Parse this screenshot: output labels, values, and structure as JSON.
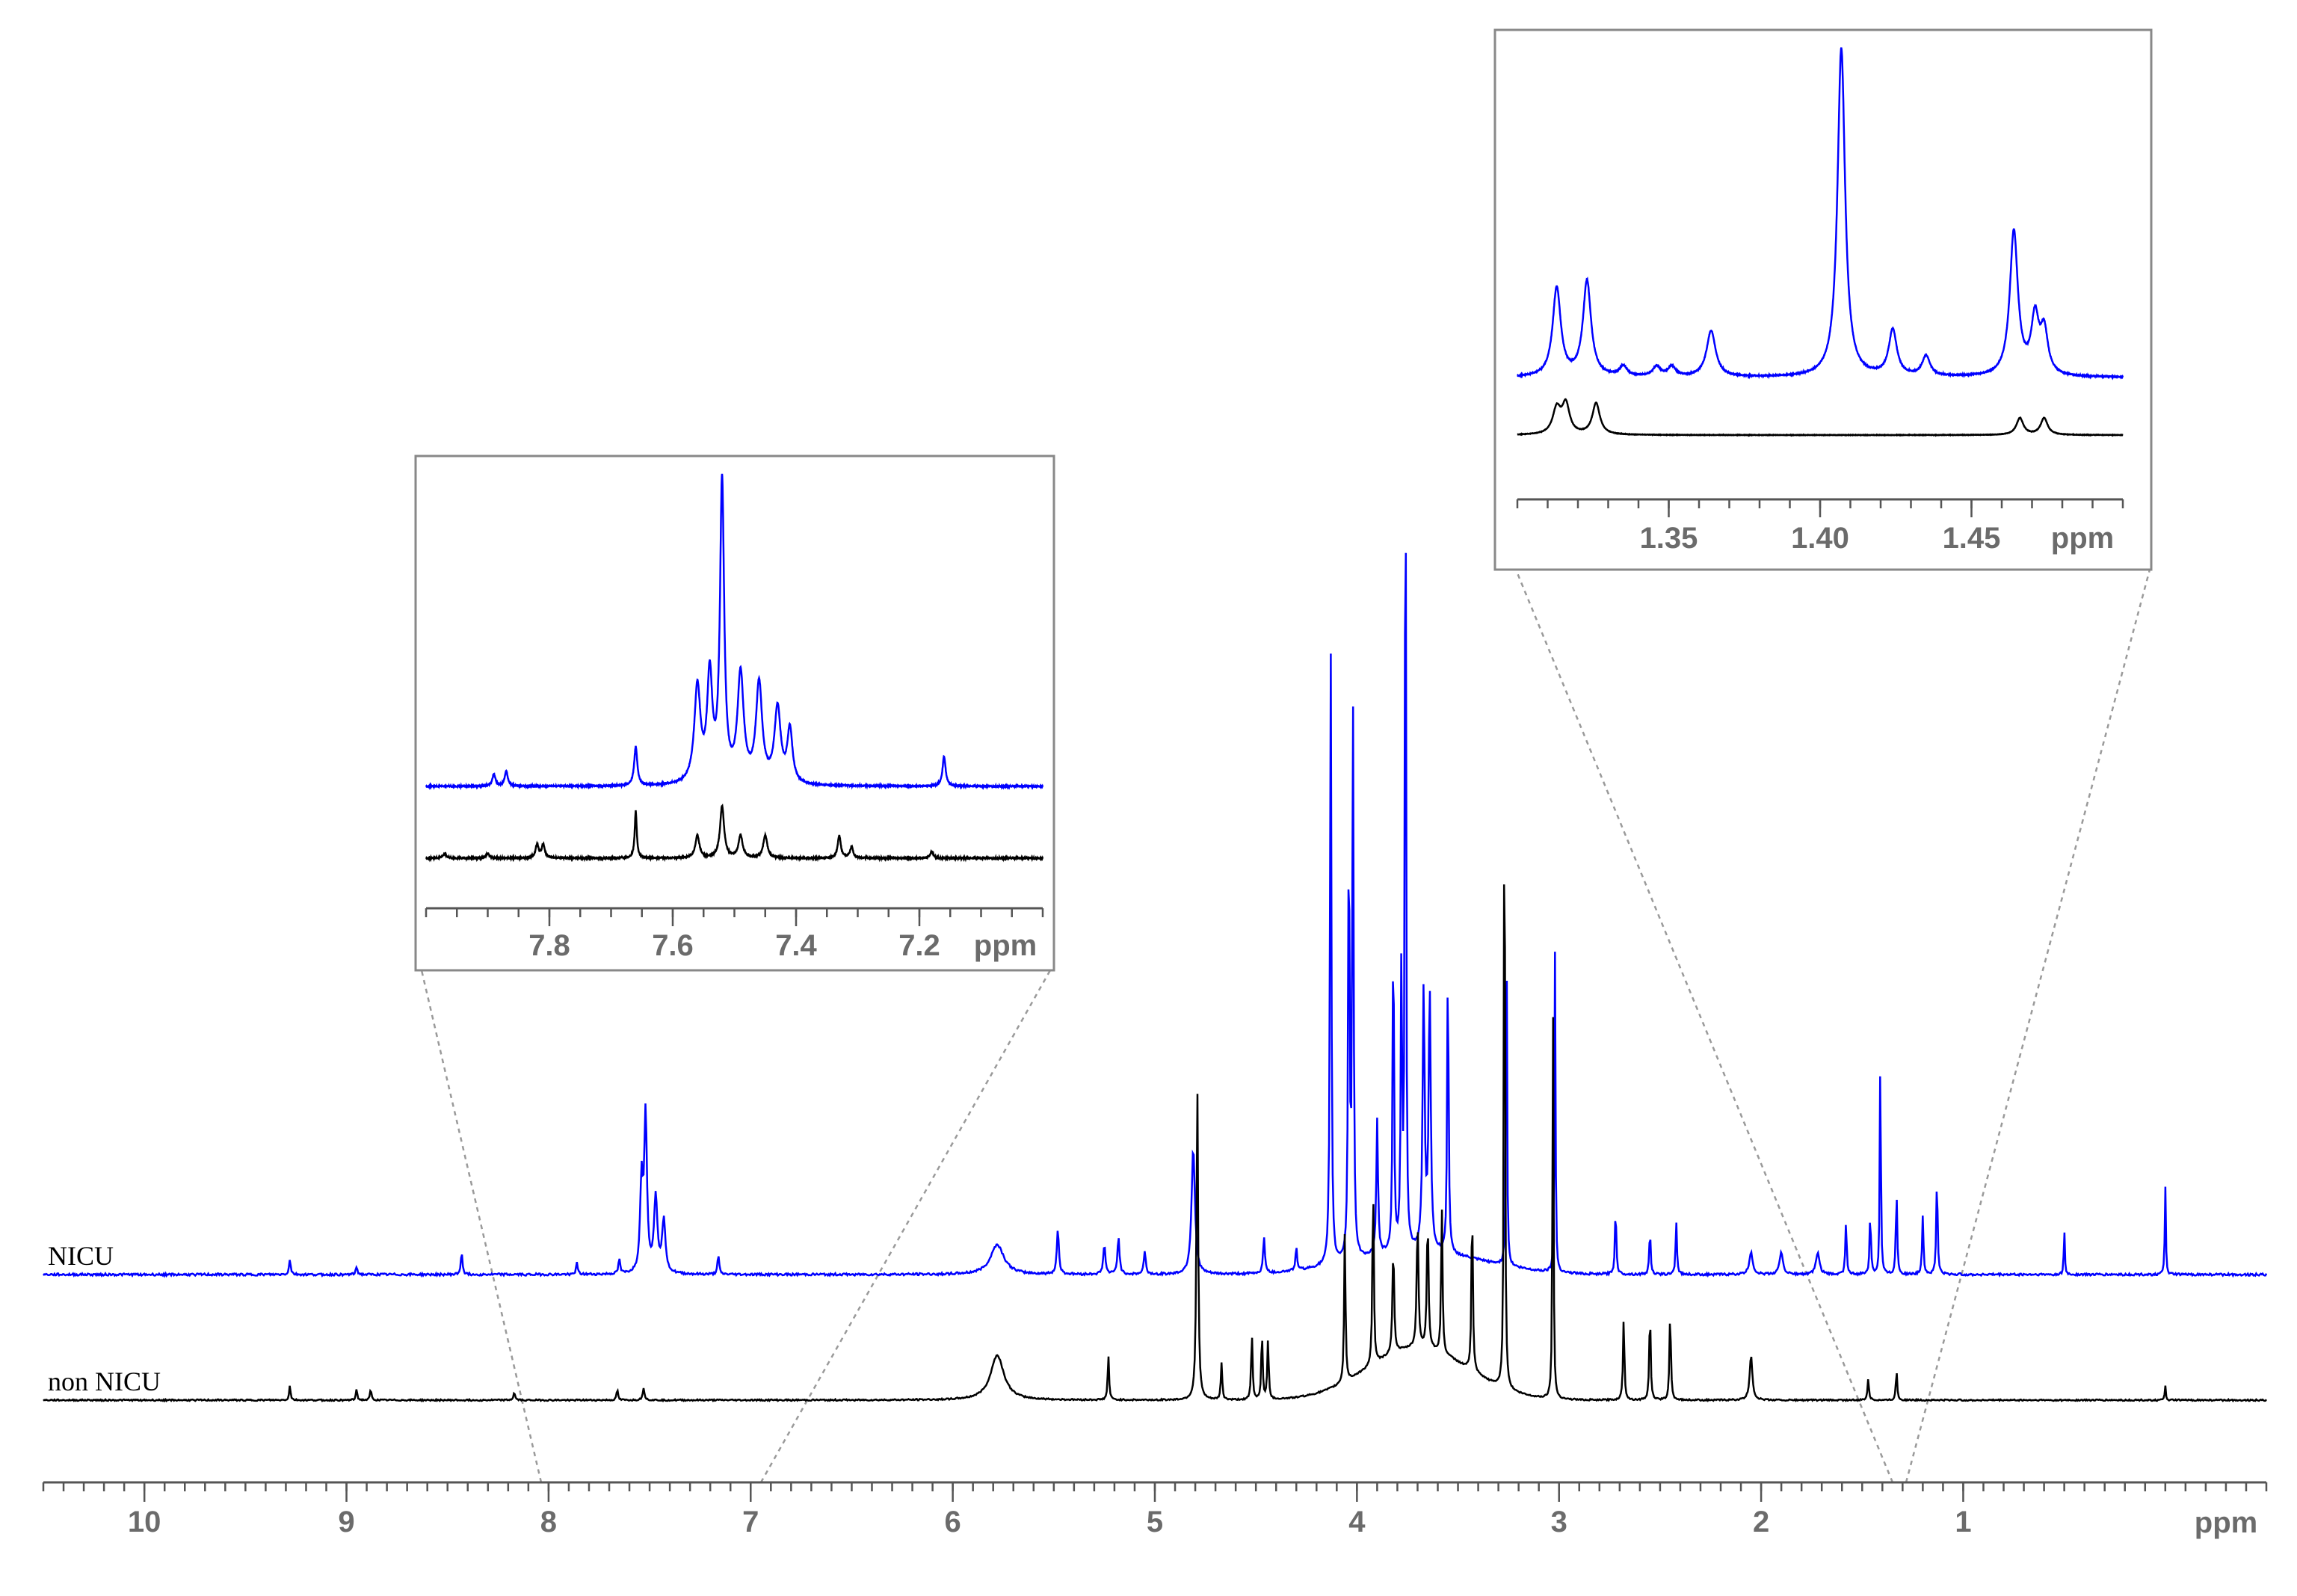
{
  "chart_data": [
    {
      "type": "line",
      "title": "",
      "xlabel": "",
      "ylabel": "",
      "x_unit_label": "ppm",
      "x_reversed": true,
      "xlim": [
        10.5,
        -0.5
      ],
      "ticks": [
        10,
        9,
        8,
        7,
        6,
        5,
        4,
        3,
        2,
        1
      ],
      "grid": false,
      "series": [
        {
          "name": "NICU",
          "color": "#0000ff",
          "peaks": [
            {
              "x": 9.28,
              "h": 0.02,
              "w": 0.005
            },
            {
              "x": 8.95,
              "h": 0.01,
              "w": 0.005
            },
            {
              "x": 8.43,
              "h": 0.03,
              "w": 0.005
            },
            {
              "x": 7.86,
              "h": 0.015,
              "w": 0.005
            },
            {
              "x": 7.65,
              "h": 0.02,
              "w": 0.005
            },
            {
              "x": 7.52,
              "h": 0.21,
              "w": 0.008
            },
            {
              "x": 7.54,
              "h": 0.12,
              "w": 0.008
            },
            {
              "x": 7.47,
              "h": 0.1,
              "w": 0.01
            },
            {
              "x": 7.43,
              "h": 0.07,
              "w": 0.01
            },
            {
              "x": 7.16,
              "h": 0.025,
              "w": 0.005
            },
            {
              "x": 5.78,
              "h": 0.04,
              "w": 0.04
            },
            {
              "x": 5.48,
              "h": 0.06,
              "w": 0.006
            },
            {
              "x": 5.25,
              "h": 0.04,
              "w": 0.006
            },
            {
              "x": 5.18,
              "h": 0.05,
              "w": 0.006
            },
            {
              "x": 5.05,
              "h": 0.03,
              "w": 0.006
            },
            {
              "x": 4.81,
              "h": 0.17,
              "w": 0.01
            },
            {
              "x": 4.46,
              "h": 0.05,
              "w": 0.005
            },
            {
              "x": 4.3,
              "h": 0.03,
              "w": 0.005
            },
            {
              "x": 4.13,
              "h": 0.85,
              "w": 0.004
            },
            {
              "x": 4.04,
              "h": 0.6,
              "w": 0.004
            },
            {
              "x": 4.02,
              "h": 0.75,
              "w": 0.004
            },
            {
              "x": 3.9,
              "h": 0.18,
              "w": 0.005
            },
            {
              "x": 3.82,
              "h": 0.45,
              "w": 0.004
            },
            {
              "x": 3.78,
              "h": 0.38,
              "w": 0.004
            },
            {
              "x": 3.76,
              "h": 1.36,
              "w": 0.003
            },
            {
              "x": 3.67,
              "h": 0.35,
              "w": 0.006
            },
            {
              "x": 3.64,
              "h": 0.35,
              "w": 0.006
            },
            {
              "x": 3.55,
              "h": 0.4,
              "w": 0.004
            },
            {
              "x": 3.26,
              "h": 0.5,
              "w": 0.003
            },
            {
              "x": 3.02,
              "h": 0.43,
              "w": 0.003
            },
            {
              "x": 2.72,
              "h": 0.09,
              "w": 0.004
            },
            {
              "x": 2.55,
              "h": 0.06,
              "w": 0.004
            },
            {
              "x": 2.42,
              "h": 0.07,
              "w": 0.004
            },
            {
              "x": 2.05,
              "h": 0.03,
              "w": 0.01
            },
            {
              "x": 1.9,
              "h": 0.03,
              "w": 0.01
            },
            {
              "x": 1.72,
              "h": 0.03,
              "w": 0.01
            },
            {
              "x": 1.58,
              "h": 0.07,
              "w": 0.004
            },
            {
              "x": 1.46,
              "h": 0.08,
              "w": 0.004
            },
            {
              "x": 1.41,
              "h": 0.31,
              "w": 0.003
            },
            {
              "x": 1.33,
              "h": 0.11,
              "w": 0.004
            },
            {
              "x": 1.2,
              "h": 0.08,
              "w": 0.004
            },
            {
              "x": 1.13,
              "h": 0.13,
              "w": 0.004
            },
            {
              "x": 0.5,
              "h": 0.06,
              "w": 0.003
            },
            {
              "x": 0.0,
              "h": 0.12,
              "w": 0.003
            }
          ],
          "hump": {
            "center": 3.7,
            "width": 0.45,
            "height": 0.03
          }
        },
        {
          "name": "non NICU",
          "color": "#000000",
          "peaks": [
            {
              "x": 9.28,
              "h": 0.02,
              "w": 0.004
            },
            {
              "x": 8.95,
              "h": 0.015,
              "w": 0.004
            },
            {
              "x": 8.88,
              "h": 0.015,
              "w": 0.004
            },
            {
              "x": 8.17,
              "h": 0.01,
              "w": 0.005
            },
            {
              "x": 7.66,
              "h": 0.015,
              "w": 0.004
            },
            {
              "x": 7.53,
              "h": 0.015,
              "w": 0.006
            },
            {
              "x": 5.78,
              "h": 0.06,
              "w": 0.04
            },
            {
              "x": 5.23,
              "h": 0.06,
              "w": 0.004
            },
            {
              "x": 4.79,
              "h": 0.42,
              "w": 0.005
            },
            {
              "x": 4.67,
              "h": 0.05,
              "w": 0.004
            },
            {
              "x": 4.52,
              "h": 0.09,
              "w": 0.004
            },
            {
              "x": 4.47,
              "h": 0.09,
              "w": 0.004
            },
            {
              "x": 4.44,
              "h": 0.08,
              "w": 0.004
            },
            {
              "x": 4.06,
              "h": 0.2,
              "w": 0.004
            },
            {
              "x": 3.92,
              "h": 0.25,
              "w": 0.004
            },
            {
              "x": 3.82,
              "h": 0.14,
              "w": 0.005
            },
            {
              "x": 3.7,
              "h": 0.17,
              "w": 0.005
            },
            {
              "x": 3.65,
              "h": 0.17,
              "w": 0.005
            },
            {
              "x": 3.58,
              "h": 0.2,
              "w": 0.004
            },
            {
              "x": 3.43,
              "h": 0.23,
              "w": 0.004
            },
            {
              "x": 3.27,
              "h": 1.0,
              "w": 0.003
            },
            {
              "x": 3.03,
              "h": 0.55,
              "w": 0.003
            },
            {
              "x": 2.68,
              "h": 0.11,
              "w": 0.004
            },
            {
              "x": 2.55,
              "h": 0.12,
              "w": 0.004
            },
            {
              "x": 2.45,
              "h": 0.12,
              "w": 0.004
            },
            {
              "x": 2.05,
              "h": 0.06,
              "w": 0.008
            },
            {
              "x": 1.47,
              "h": 0.03,
              "w": 0.004
            },
            {
              "x": 1.33,
              "h": 0.04,
              "w": 0.004
            },
            {
              "x": 0.0,
              "h": 0.02,
              "w": 0.003
            }
          ],
          "hump": {
            "center": 3.7,
            "width": 0.35,
            "height": 0.07
          }
        }
      ]
    },
    {
      "type": "line",
      "title": "",
      "x_unit_label": "ppm",
      "x_reversed": true,
      "xlim": [
        8.0,
        7.0
      ],
      "ticks": [
        7.8,
        7.6,
        7.4,
        7.2
      ],
      "series": [
        {
          "name": "NICU",
          "color": "#0000ff",
          "peaks": [
            {
              "x": 7.89,
              "h": 0.04,
              "w": 0.003
            },
            {
              "x": 7.87,
              "h": 0.05,
              "w": 0.003
            },
            {
              "x": 7.66,
              "h": 0.13,
              "w": 0.003
            },
            {
              "x": 7.56,
              "h": 0.32,
              "w": 0.006
            },
            {
              "x": 7.54,
              "h": 0.35,
              "w": 0.005
            },
            {
              "x": 7.52,
              "h": 1.0,
              "w": 0.004
            },
            {
              "x": 7.49,
              "h": 0.36,
              "w": 0.006
            },
            {
              "x": 7.46,
              "h": 0.33,
              "w": 0.006
            },
            {
              "x": 7.43,
              "h": 0.25,
              "w": 0.006
            },
            {
              "x": 7.41,
              "h": 0.18,
              "w": 0.005
            },
            {
              "x": 7.16,
              "h": 0.1,
              "w": 0.003
            }
          ]
        },
        {
          "name": "non NICU",
          "color": "#000000",
          "peaks": [
            {
              "x": 7.97,
              "h": 0.02,
              "w": 0.003
            },
            {
              "x": 7.9,
              "h": 0.02,
              "w": 0.003
            },
            {
              "x": 7.82,
              "h": 0.06,
              "w": 0.003
            },
            {
              "x": 7.81,
              "h": 0.06,
              "w": 0.003
            },
            {
              "x": 7.66,
              "h": 0.21,
              "w": 0.002
            },
            {
              "x": 7.56,
              "h": 0.1,
              "w": 0.004
            },
            {
              "x": 7.52,
              "h": 0.23,
              "w": 0.004
            },
            {
              "x": 7.49,
              "h": 0.1,
              "w": 0.004
            },
            {
              "x": 7.45,
              "h": 0.1,
              "w": 0.004
            },
            {
              "x": 7.33,
              "h": 0.1,
              "w": 0.003
            },
            {
              "x": 7.31,
              "h": 0.05,
              "w": 0.003
            },
            {
              "x": 7.18,
              "h": 0.03,
              "w": 0.003
            }
          ]
        }
      ]
    },
    {
      "type": "line",
      "title": "",
      "x_unit_label": "ppm",
      "x_reversed": false,
      "xlim": [
        1.3,
        1.5
      ],
      "ticks": [
        1.35,
        1.4,
        1.45
      ],
      "series": [
        {
          "name": "NICU",
          "color": "#0000ff",
          "peaks": [
            {
              "x": 1.313,
              "h": 0.27,
              "w": 0.0016
            },
            {
              "x": 1.323,
              "h": 0.29,
              "w": 0.0016
            },
            {
              "x": 1.335,
              "h": 0.03,
              "w": 0.0015
            },
            {
              "x": 1.346,
              "h": 0.03,
              "w": 0.0015
            },
            {
              "x": 1.351,
              "h": 0.03,
              "w": 0.0015
            },
            {
              "x": 1.364,
              "h": 0.14,
              "w": 0.0018
            },
            {
              "x": 1.407,
              "h": 1.0,
              "w": 0.0015
            },
            {
              "x": 1.424,
              "h": 0.14,
              "w": 0.0016
            },
            {
              "x": 1.435,
              "h": 0.06,
              "w": 0.0016
            },
            {
              "x": 1.464,
              "h": 0.44,
              "w": 0.0016
            },
            {
              "x": 1.471,
              "h": 0.17,
              "w": 0.0015
            },
            {
              "x": 1.474,
              "h": 0.13,
              "w": 0.0015
            }
          ]
        },
        {
          "name": "non NICU",
          "color": "#000000",
          "peaks": [
            {
              "x": 1.313,
              "h": 0.12,
              "w": 0.0016
            },
            {
              "x": 1.316,
              "h": 0.14,
              "w": 0.0015
            },
            {
              "x": 1.326,
              "h": 0.15,
              "w": 0.0015
            },
            {
              "x": 1.466,
              "h": 0.08,
              "w": 0.0014
            },
            {
              "x": 1.474,
              "h": 0.08,
              "w": 0.0014
            }
          ]
        }
      ]
    }
  ]
}
